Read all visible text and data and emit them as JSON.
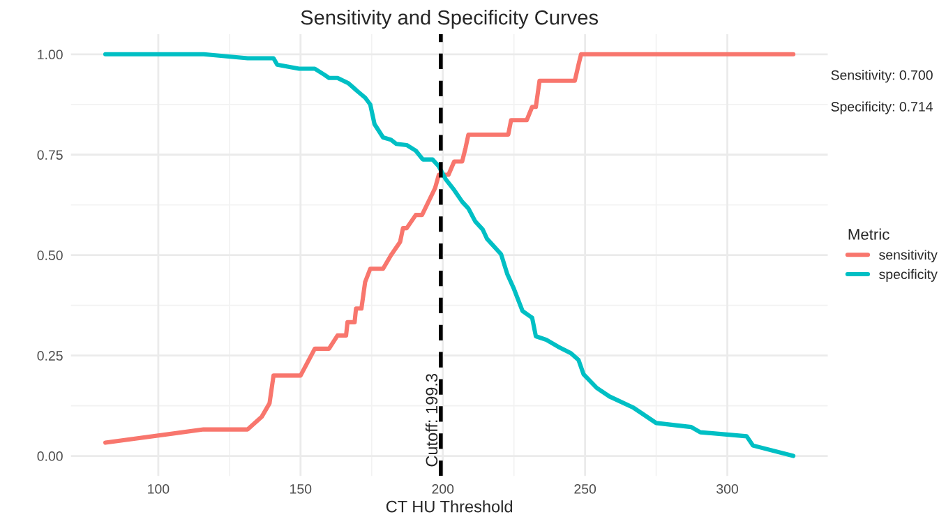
{
  "chart_data": {
    "type": "line",
    "title": "Sensitivity and Specificity Curves",
    "xlabel": "CT HU Threshold",
    "legend_title": "Metric",
    "legend": "right",
    "grid": true,
    "line_style": "solid",
    "xlim": [
      69.3,
      335.3
    ],
    "ylim": [
      -0.05,
      1.05
    ],
    "xticks": [
      100,
      150,
      200,
      250,
      300
    ],
    "yticks": [
      {
        "value": 0,
        "label": "0.00"
      },
      {
        "value": 0.25,
        "label": "0.25"
      },
      {
        "value": 0.5,
        "label": "0.50"
      },
      {
        "value": 0.75,
        "label": "0.75"
      },
      {
        "value": 1,
        "label": "1.00"
      }
    ],
    "series": [
      {
        "name": "sensitivity",
        "color": "#f8766d",
        "x": [
          81.4,
          115.9,
          131.4,
          136.4,
          139.1,
          140.5,
          150,
          155,
          160,
          163,
          166,
          166.5,
          169,
          169.5,
          171.4,
          172.7,
          174.5,
          179,
          181.8,
          185,
          186,
          187.3,
          190.5,
          192.7,
          197.3,
          198.6,
          202,
          204,
          206.8,
          208,
          209,
          223,
          224,
          229.5,
          231.4,
          232.7,
          234,
          246.4,
          247.7,
          248.6,
          323.2
        ],
        "values": [
          0.033,
          0.066,
          0.066,
          0.098,
          0.131,
          0.2,
          0.2,
          0.267,
          0.267,
          0.3,
          0.3,
          0.333,
          0.333,
          0.367,
          0.367,
          0.433,
          0.466,
          0.466,
          0.5,
          0.533,
          0.567,
          0.567,
          0.6,
          0.6,
          0.667,
          0.7,
          0.7,
          0.733,
          0.733,
          0.767,
          0.8,
          0.8,
          0.836,
          0.836,
          0.869,
          0.869,
          0.934,
          0.934,
          0.974,
          1.0,
          1.0
        ]
      },
      {
        "name": "specificity",
        "color": "#00bfc4",
        "x": [
          81.4,
          116,
          131.4,
          140.5,
          141.8,
          149.5,
          155,
          158.6,
          160,
          163,
          166.8,
          170,
          172.7,
          174.5,
          176,
          179,
          181.8,
          183.6,
          187.3,
          190.5,
          193,
          196.4,
          198.6,
          201,
          204,
          206.8,
          209,
          211.4,
          214,
          215.5,
          220.5,
          222.7,
          225,
          228,
          231.4,
          232.7,
          236.4,
          240.5,
          245,
          247.7,
          249.5,
          254,
          258.6,
          266.8,
          275,
          287.3,
          290.5,
          306.8,
          309,
          323.2
        ],
        "values": [
          1.0,
          1.0,
          0.99,
          0.99,
          0.974,
          0.964,
          0.964,
          0.948,
          0.941,
          0.941,
          0.928,
          0.908,
          0.892,
          0.875,
          0.826,
          0.793,
          0.787,
          0.777,
          0.774,
          0.76,
          0.738,
          0.738,
          0.721,
          0.689,
          0.662,
          0.633,
          0.616,
          0.584,
          0.564,
          0.541,
          0.502,
          0.452,
          0.416,
          0.361,
          0.344,
          0.298,
          0.289,
          0.272,
          0.256,
          0.239,
          0.203,
          0.17,
          0.148,
          0.121,
          0.082,
          0.072,
          0.059,
          0.049,
          0.026,
          0.0
        ]
      }
    ],
    "ref_lines": [
      {
        "axis": "x",
        "value": 199.3,
        "label": "Cutoff: 199.3",
        "color": "#000000",
        "line_style": "dashed"
      }
    ],
    "annotations": [
      "Sensitivity: 0.700",
      "Specificity: 0.714"
    ]
  }
}
